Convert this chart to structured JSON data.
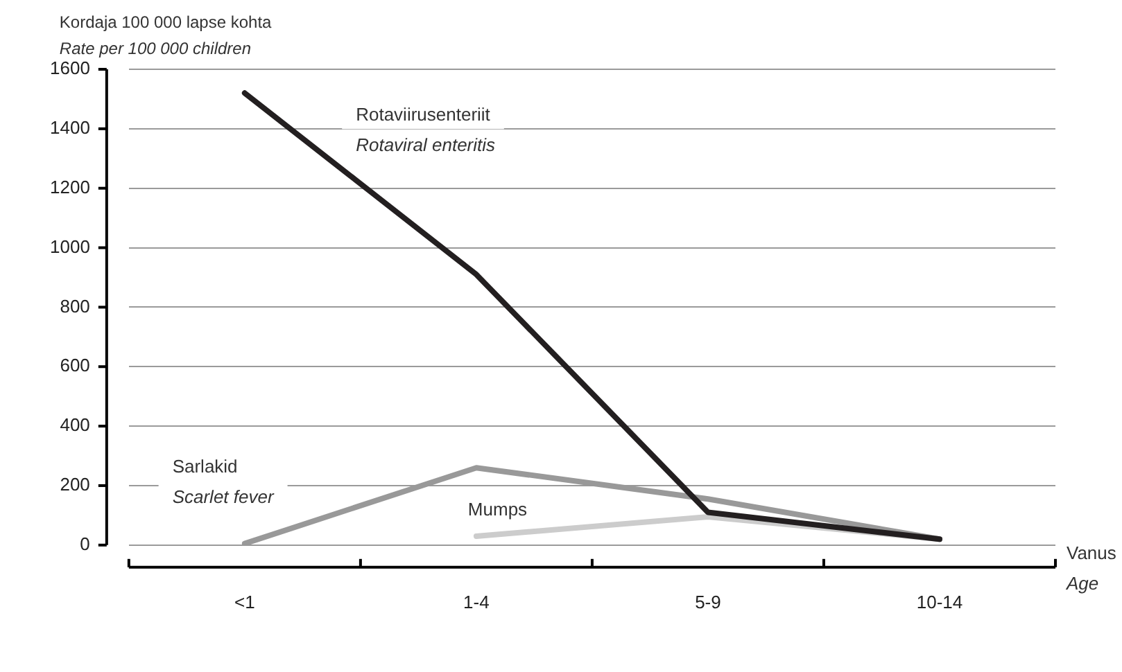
{
  "chart_data": {
    "type": "line",
    "ylabel": "Kordaja 100 000 lapse kohta\nRate per 100 000 children",
    "xlabel": "Vanus\nAge",
    "categories": [
      "<1",
      "1-4",
      "5-9",
      "10-14"
    ],
    "series": [
      {
        "name": "Rotaviirusenteriit\nRotaviral enteritis",
        "color": "#231f20",
        "values": [
          1520,
          910,
          110,
          20
        ]
      },
      {
        "name": "Sarlakid\nScarlet fever",
        "color": "#999999",
        "values": [
          5,
          260,
          155,
          20
        ]
      },
      {
        "name": "Mumps",
        "color": "#cccccc",
        "values": [
          null,
          30,
          95,
          20
        ]
      }
    ],
    "ylim": [
      0,
      1600
    ],
    "yticks": [
      0,
      200,
      400,
      600,
      800,
      1000,
      1200,
      1400,
      1600
    ],
    "grid": "y",
    "legend": false,
    "marker": "none",
    "line_style": "solid"
  }
}
